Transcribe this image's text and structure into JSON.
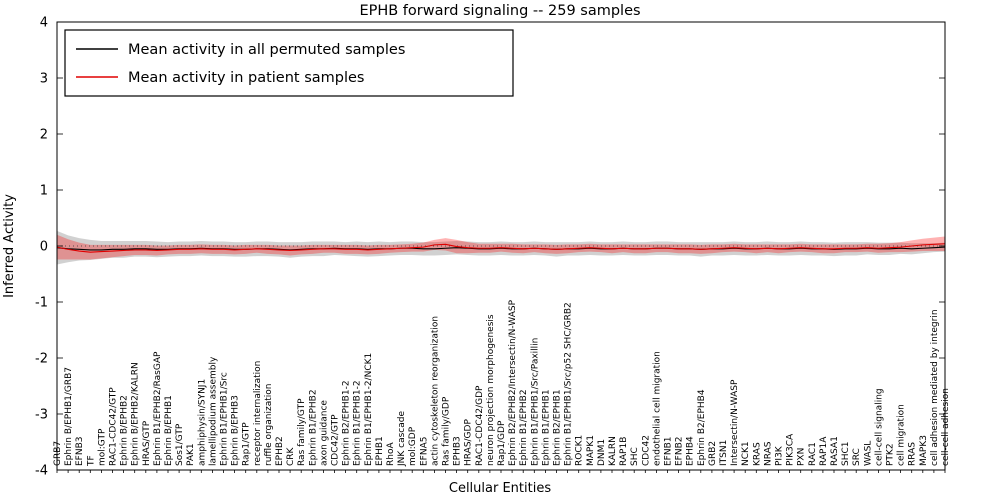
{
  "chart_data": {
    "type": "line",
    "title": "EPHB forward signaling -- 259 samples",
    "xlabel": "Cellular Entities",
    "ylabel": "Inferred Activity",
    "ylim": [
      -4,
      4
    ],
    "yticks": [
      4,
      3,
      2,
      1,
      0,
      -1,
      -2,
      -3,
      -4
    ],
    "grid": false,
    "legend_position": "upper-left",
    "legend": [
      "Mean activity in all permuted samples",
      "Mean activity in patient samples"
    ],
    "colors": {
      "permuted_line": "#000000",
      "patient_line": "#e00000",
      "permuted_band": "#000000",
      "patient_band": "#ff0000",
      "axis": "#000000"
    },
    "categories": [
      "GRB7",
      "Ephrin B/EPHB1/GRB7",
      "EFNB3",
      "TF",
      "mol:GTP",
      "RAC1-CDC42/GTP",
      "Ephrin B/EPHB2",
      "Ephrin B/EPHB2/KALRN",
      "HRAS/GTP",
      "Ephrin B1/EPHB2/RasGAP",
      "Ephrin B/EPHB1",
      "Sos1/GTP",
      "PAK1",
      "amphiphysin/SYNJ1",
      "lamellipodium assembly",
      "Ephrin B1/EPHB1/Src",
      "Ephrin B/EPHB3",
      "Rap1/GTP",
      "receptor internalization",
      "ruffle organization",
      "EPHB2",
      "CRK",
      "Ras family/GTP",
      "Ephrin B1/EPHB2",
      "axon guidance",
      "CDC42/GTP",
      "Ephrin B2/EPHB1-2",
      "Ephrin B1/EPHB1-2",
      "Ephrin B1/EPHB1-2/NCK1",
      "EPHB1",
      "RhoA",
      "JNK cascade",
      "mol:GDP",
      "EFNA5",
      "actin cytoskeleton reorganization",
      "Ras family/GDP",
      "EPHB3",
      "HRAS/GDP",
      "RAC1-CDC42/GDP",
      "neuron projection morphogenesis",
      "Rap1/GDP",
      "Ephrin B2/EPHB2/Intersectin/N-WASP",
      "Ephrin B1/EPHB2",
      "Ephrin B1/EPHB1/Src/Paxillin",
      "Ephrin B1/EPHB1",
      "Ephrin B2/EPHB1",
      "Ephrin B1/EPHB1/Src/p52 SHC/GRB2",
      "ROCK1",
      "MAPK1",
      "DNM1",
      "KALRN",
      "RAP1B",
      "SHC",
      "CDC42",
      "endothelial cell migration",
      "EFNB1",
      "EFNB2",
      "EPHB4",
      "Ephrin B2/EPHB4",
      "GRB2",
      "ITSN1",
      "Intersectin/N-WASP",
      "NCK1",
      "KRAS",
      "NRAS",
      "PI3K",
      "PIK3CA",
      "PXN",
      "RAC1",
      "RAP1A",
      "RASA1",
      "SHC1",
      "SRC",
      "WASL",
      "cell-cell signaling",
      "PTK2",
      "cell migration",
      "RRAS",
      "MAPK3",
      "cell adhesion mediated by integrin",
      "cell-cell adhesion"
    ],
    "series": [
      {
        "name": "Mean activity in all permuted samples",
        "values": [
          -0.03,
          -0.05,
          -0.06,
          -0.07,
          -0.07,
          -0.06,
          -0.06,
          -0.05,
          -0.05,
          -0.06,
          -0.06,
          -0.05,
          -0.05,
          -0.04,
          -0.05,
          -0.05,
          -0.06,
          -0.06,
          -0.05,
          -0.05,
          -0.06,
          -0.07,
          -0.06,
          -0.05,
          -0.05,
          -0.04,
          -0.05,
          -0.05,
          -0.06,
          -0.05,
          -0.05,
          -0.04,
          -0.04,
          -0.05,
          -0.05,
          -0.04,
          -0.03,
          -0.04,
          -0.05,
          -0.05,
          -0.04,
          -0.05,
          -0.05,
          -0.04,
          -0.05,
          -0.06,
          -0.05,
          -0.05,
          -0.04,
          -0.05,
          -0.05,
          -0.04,
          -0.05,
          -0.05,
          -0.04,
          -0.04,
          -0.05,
          -0.05,
          -0.06,
          -0.05,
          -0.05,
          -0.04,
          -0.05,
          -0.05,
          -0.04,
          -0.05,
          -0.05,
          -0.04,
          -0.05,
          -0.05,
          -0.06,
          -0.05,
          -0.05,
          -0.04,
          -0.05,
          -0.05,
          -0.04,
          -0.05,
          -0.04,
          -0.03,
          -0.02
        ],
        "sd": [
          0.3,
          0.24,
          0.2,
          0.18,
          0.16,
          0.15,
          0.15,
          0.14,
          0.14,
          0.14,
          0.13,
          0.13,
          0.13,
          0.13,
          0.13,
          0.13,
          0.13,
          0.13,
          0.13,
          0.13,
          0.13,
          0.14,
          0.13,
          0.13,
          0.13,
          0.12,
          0.12,
          0.13,
          0.13,
          0.13,
          0.12,
          0.12,
          0.12,
          0.12,
          0.12,
          0.12,
          0.12,
          0.12,
          0.12,
          0.12,
          0.12,
          0.12,
          0.12,
          0.12,
          0.12,
          0.13,
          0.12,
          0.12,
          0.12,
          0.12,
          0.12,
          0.12,
          0.12,
          0.12,
          0.12,
          0.12,
          0.12,
          0.12,
          0.13,
          0.12,
          0.12,
          0.12,
          0.12,
          0.12,
          0.12,
          0.12,
          0.12,
          0.12,
          0.12,
          0.12,
          0.12,
          0.12,
          0.12,
          0.11,
          0.11,
          0.11,
          0.1,
          0.1,
          0.09,
          0.08,
          0.08
        ]
      },
      {
        "name": "Mean activity in patient samples",
        "values": [
          -0.02,
          -0.06,
          -0.09,
          -0.11,
          -0.1,
          -0.09,
          -0.08,
          -0.07,
          -0.07,
          -0.08,
          -0.07,
          -0.06,
          -0.06,
          -0.05,
          -0.06,
          -0.06,
          -0.07,
          -0.06,
          -0.05,
          -0.06,
          -0.07,
          -0.08,
          -0.07,
          -0.06,
          -0.05,
          -0.05,
          -0.06,
          -0.06,
          -0.07,
          -0.06,
          -0.05,
          -0.04,
          -0.03,
          -0.02,
          0.02,
          0.03,
          -0.01,
          -0.03,
          -0.04,
          -0.04,
          -0.03,
          -0.04,
          -0.05,
          -0.04,
          -0.05,
          -0.06,
          -0.05,
          -0.04,
          -0.03,
          -0.04,
          -0.05,
          -0.04,
          -0.05,
          -0.05,
          -0.04,
          -0.04,
          -0.05,
          -0.05,
          -0.06,
          -0.05,
          -0.04,
          -0.03,
          -0.04,
          -0.05,
          -0.04,
          -0.05,
          -0.04,
          -0.03,
          -0.04,
          -0.05,
          -0.05,
          -0.04,
          -0.04,
          -0.03,
          -0.04,
          -0.03,
          -0.02,
          0.0,
          0.02,
          0.03,
          0.04
        ],
        "sd": [
          0.22,
          0.18,
          0.15,
          0.13,
          0.12,
          0.11,
          0.1,
          0.09,
          0.09,
          0.09,
          0.08,
          0.08,
          0.08,
          0.08,
          0.08,
          0.08,
          0.08,
          0.08,
          0.07,
          0.08,
          0.08,
          0.09,
          0.08,
          0.08,
          0.07,
          0.07,
          0.08,
          0.08,
          0.08,
          0.08,
          0.07,
          0.07,
          0.07,
          0.08,
          0.09,
          0.11,
          0.12,
          0.1,
          0.08,
          0.08,
          0.07,
          0.08,
          0.08,
          0.07,
          0.08,
          0.08,
          0.08,
          0.07,
          0.07,
          0.07,
          0.08,
          0.07,
          0.08,
          0.08,
          0.07,
          0.07,
          0.08,
          0.08,
          0.08,
          0.08,
          0.07,
          0.07,
          0.07,
          0.08,
          0.07,
          0.08,
          0.07,
          0.07,
          0.07,
          0.08,
          0.08,
          0.07,
          0.07,
          0.07,
          0.08,
          0.08,
          0.09,
          0.1,
          0.11,
          0.12,
          0.13
        ]
      }
    ]
  }
}
